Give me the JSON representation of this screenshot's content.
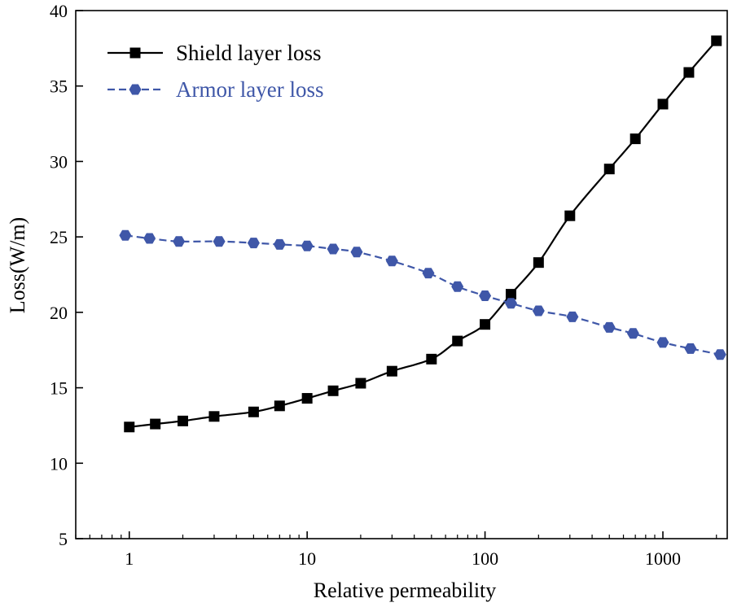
{
  "chart_data": {
    "type": "line",
    "x_scale": "log",
    "title": "",
    "xlabel": "Relative permeability",
    "ylabel": "Loss(W/m)",
    "xlim": [
      0.5,
      2300
    ],
    "ylim": [
      5,
      40
    ],
    "x_ticks": [
      {
        "value": 1,
        "label": "1"
      },
      {
        "value": 10,
        "label": "10"
      },
      {
        "value": 100,
        "label": "100"
      },
      {
        "value": 1000,
        "label": "1000"
      }
    ],
    "y_ticks": [
      {
        "value": 5,
        "label": "5"
      },
      {
        "value": 10,
        "label": "10"
      },
      {
        "value": 15,
        "label": "15"
      },
      {
        "value": 20,
        "label": "20"
      },
      {
        "value": 25,
        "label": "25"
      },
      {
        "value": 30,
        "label": "30"
      },
      {
        "value": 35,
        "label": "35"
      },
      {
        "value": 40,
        "label": "40"
      }
    ],
    "legend_position": "top-left",
    "series": [
      {
        "name": "Shield layer loss",
        "color": "#000000",
        "marker": "square",
        "line_style": "solid",
        "x": [
          1,
          1.4,
          2,
          3,
          5,
          7,
          10,
          14,
          20,
          30,
          50,
          70,
          100,
          140,
          200,
          300,
          500,
          700,
          1000,
          1400,
          2000
        ],
        "y": [
          12.4,
          12.6,
          12.8,
          13.1,
          13.4,
          13.8,
          14.3,
          14.8,
          15.3,
          16.1,
          16.9,
          18.1,
          19.2,
          21.2,
          23.3,
          26.4,
          29.5,
          31.5,
          33.8,
          35.9,
          38.0
        ]
      },
      {
        "name": "Armor layer loss",
        "color": "#3f57a8",
        "marker": "hexagon",
        "line_style": "dashed",
        "x": [
          0.95,
          1.3,
          1.9,
          3.2,
          5,
          7,
          10,
          14,
          19,
          30,
          48,
          70,
          100,
          140,
          200,
          310,
          500,
          680,
          1000,
          1430,
          2100
        ],
        "y": [
          25.1,
          24.9,
          24.7,
          24.7,
          24.6,
          24.5,
          24.4,
          24.2,
          24.0,
          23.4,
          22.6,
          21.7,
          21.1,
          20.6,
          20.1,
          19.7,
          19.0,
          18.6,
          18.0,
          17.6,
          17.2
        ]
      }
    ]
  }
}
